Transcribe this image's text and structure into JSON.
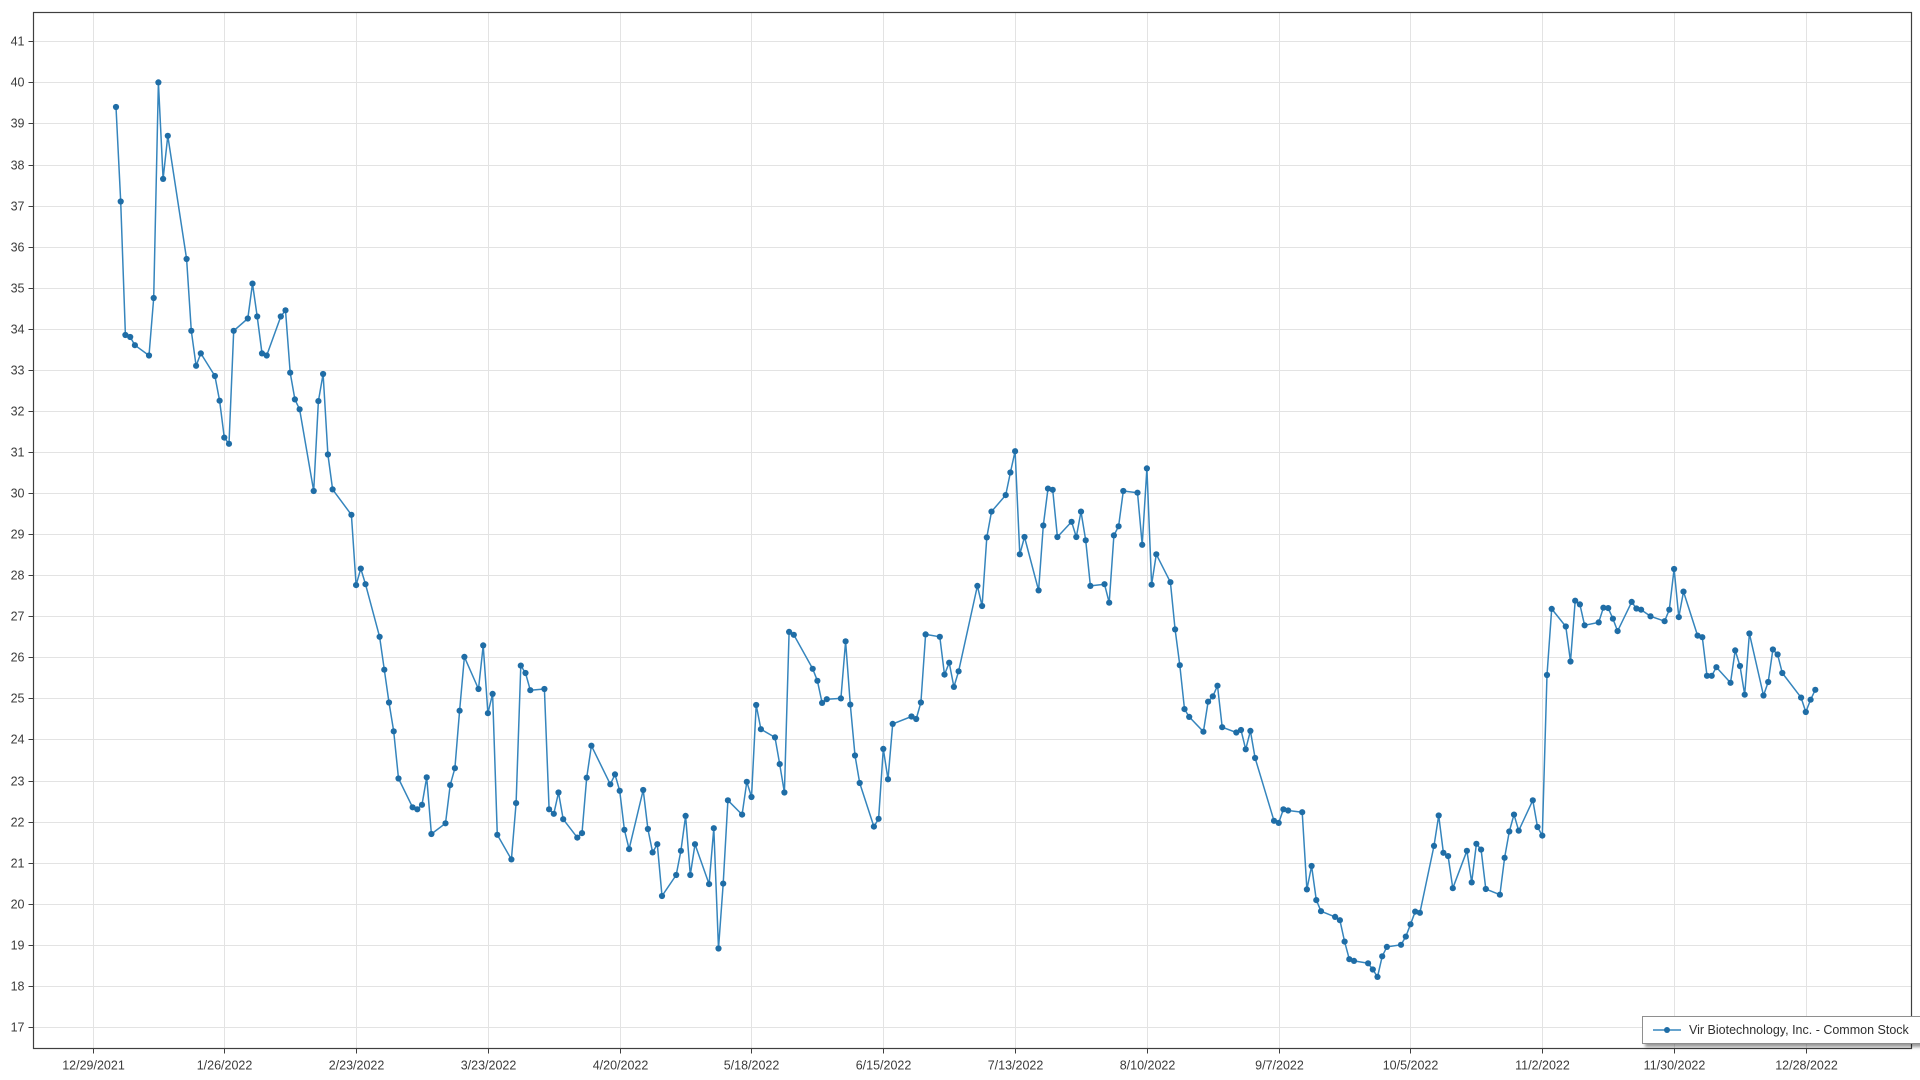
{
  "page": {
    "background": "#ffffff"
  },
  "legend": {
    "label": "Vir Biotechnology, Inc. - Common Stock"
  },
  "colors": {
    "line": "#3585bd",
    "marker": "#1f6da6",
    "grid": "#e3e3e3",
    "plot_border": "#3f3f3f",
    "tick": "#3f3f3f",
    "tick_label": "#3c3c3c",
    "legend_border": "#8f8f8f",
    "legend_bg": "#ffffff",
    "legend_text": "#2f2f2f",
    "background": "#ffffff"
  },
  "chart_data": {
    "type": "line",
    "title": "",
    "xlabel": "",
    "ylabel": "",
    "grid": true,
    "legend_position": "bottom-right",
    "ylim": [
      16.5,
      41.7
    ],
    "y_ticks": [
      17,
      18,
      19,
      20,
      21,
      22,
      23,
      24,
      25,
      26,
      27,
      28,
      29,
      30,
      31,
      32,
      33,
      34,
      35,
      36,
      37,
      38,
      39,
      40,
      41
    ],
    "x_tick_labels": [
      "12/29/2021",
      "1/26/2022",
      "2/23/2022",
      "3/23/2022",
      "4/20/2022",
      "5/18/2022",
      "6/15/2022",
      "7/13/2022",
      "8/10/2022",
      "9/7/2022",
      "10/5/2022",
      "11/2/2022",
      "11/30/2022",
      "12/28/2022"
    ],
    "series": [
      {
        "name": "Vir Biotechnology, Inc. - Common Stock",
        "points": [
          [
            "1/3/2022",
            39.4
          ],
          [
            "1/4/2022",
            37.1
          ],
          [
            "1/5/2022",
            33.85
          ],
          [
            "1/6/2022",
            33.8
          ],
          [
            "1/7/2022",
            33.6
          ],
          [
            "1/10/2022",
            33.35
          ],
          [
            "1/11/2022",
            34.75
          ],
          [
            "1/12/2022",
            40.0
          ],
          [
            "1/13/2022",
            37.65
          ],
          [
            "1/14/2022",
            38.7
          ],
          [
            "1/18/2022",
            35.7
          ],
          [
            "1/19/2022",
            33.95
          ],
          [
            "1/20/2022",
            33.1
          ],
          [
            "1/21/2022",
            33.4
          ],
          [
            "1/24/2022",
            32.85
          ],
          [
            "1/25/2022",
            32.25
          ],
          [
            "1/26/2022",
            31.35
          ],
          [
            "1/27/2022",
            31.2
          ],
          [
            "1/28/2022",
            33.95
          ],
          [
            "1/31/2022",
            34.25
          ],
          [
            "2/1/2022",
            35.1
          ],
          [
            "2/2/2022",
            34.3
          ],
          [
            "2/3/2022",
            33.4
          ],
          [
            "2/4/2022",
            33.35
          ],
          [
            "2/7/2022",
            34.3
          ],
          [
            "2/8/2022",
            34.45
          ],
          [
            "2/9/2022",
            32.93
          ],
          [
            "2/10/2022",
            32.28
          ],
          [
            "2/11/2022",
            32.04
          ],
          [
            "2/14/2022",
            30.05
          ],
          [
            "2/15/2022",
            32.24
          ],
          [
            "2/16/2022",
            32.9
          ],
          [
            "2/17/2022",
            30.94
          ],
          [
            "2/18/2022",
            30.09
          ],
          [
            "2/22/2022",
            29.47
          ],
          [
            "2/23/2022",
            27.76
          ],
          [
            "2/24/2022",
            28.16
          ],
          [
            "2/25/2022",
            27.78
          ],
          [
            "2/28/2022",
            26.5
          ],
          [
            "3/1/2022",
            25.7
          ],
          [
            "3/2/2022",
            24.9
          ],
          [
            "3/3/2022",
            24.2
          ],
          [
            "3/4/2022",
            23.05
          ],
          [
            "3/7/2022",
            22.35
          ],
          [
            "3/8/2022",
            22.3
          ],
          [
            "3/9/2022",
            22.41
          ],
          [
            "3/10/2022",
            23.08
          ],
          [
            "3/11/2022",
            21.7
          ],
          [
            "3/14/2022",
            21.96
          ],
          [
            "3/15/2022",
            22.89
          ],
          [
            "3/16/2022",
            23.3
          ],
          [
            "3/17/2022",
            24.7
          ],
          [
            "3/18/2022",
            26.01
          ],
          [
            "3/21/2022",
            25.23
          ],
          [
            "3/22/2022",
            26.29
          ],
          [
            "3/23/2022",
            24.64
          ],
          [
            "3/24/2022",
            25.11
          ],
          [
            "3/25/2022",
            21.68
          ],
          [
            "3/28/2022",
            21.08
          ],
          [
            "3/29/2022",
            22.45
          ],
          [
            "3/30/2022",
            25.8
          ],
          [
            "3/31/2022",
            25.62
          ],
          [
            "4/1/2022",
            25.2
          ],
          [
            "4/4/2022",
            25.23
          ],
          [
            "4/5/2022",
            22.3
          ],
          [
            "4/6/2022",
            22.19
          ],
          [
            "4/7/2022",
            22.71
          ],
          [
            "4/8/2022",
            22.06
          ],
          [
            "4/11/2022",
            21.61
          ],
          [
            "4/12/2022",
            21.72
          ],
          [
            "4/13/2022",
            23.07
          ],
          [
            "4/14/2022",
            23.85
          ],
          [
            "4/18/2022",
            22.91
          ],
          [
            "4/19/2022",
            23.15
          ],
          [
            "4/20/2022",
            22.75
          ],
          [
            "4/21/2022",
            21.8
          ],
          [
            "4/22/2022",
            21.33
          ],
          [
            "4/25/2022",
            22.77
          ],
          [
            "4/26/2022",
            21.82
          ],
          [
            "4/27/2022",
            21.25
          ],
          [
            "4/28/2022",
            21.45
          ],
          [
            "4/29/2022",
            20.19
          ],
          [
            "5/2/2022",
            20.7
          ],
          [
            "5/3/2022",
            21.29
          ],
          [
            "5/4/2022",
            22.14
          ],
          [
            "5/5/2022",
            20.7
          ],
          [
            "5/6/2022",
            21.45
          ],
          [
            "5/9/2022",
            20.48
          ],
          [
            "5/10/2022",
            21.84
          ],
          [
            "5/11/2022",
            18.91
          ],
          [
            "5/12/2022",
            20.49
          ],
          [
            "5/13/2022",
            22.52
          ],
          [
            "5/16/2022",
            22.17
          ],
          [
            "5/17/2022",
            22.97
          ],
          [
            "5/18/2022",
            22.6
          ],
          [
            "5/19/2022",
            24.84
          ],
          [
            "5/20/2022",
            24.25
          ],
          [
            "5/23/2022",
            24.05
          ],
          [
            "5/24/2022",
            23.4
          ],
          [
            "5/25/2022",
            22.71
          ],
          [
            "5/26/2022",
            26.62
          ],
          [
            "5/27/2022",
            26.55
          ],
          [
            "5/31/2022",
            25.72
          ],
          [
            "6/1/2022",
            25.43
          ],
          [
            "6/2/2022",
            24.89
          ],
          [
            "6/3/2022",
            24.98
          ],
          [
            "6/6/2022",
            25.0
          ],
          [
            "6/7/2022",
            26.39
          ],
          [
            "6/8/2022",
            24.85
          ],
          [
            "6/9/2022",
            23.61
          ],
          [
            "6/10/2022",
            22.94
          ],
          [
            "6/13/2022",
            21.88
          ],
          [
            "6/14/2022",
            22.07
          ],
          [
            "6/15/2022",
            23.77
          ],
          [
            "6/16/2022",
            23.03
          ],
          [
            "6/17/2022",
            24.38
          ],
          [
            "6/21/2022",
            24.56
          ],
          [
            "6/22/2022",
            24.5
          ],
          [
            "6/23/2022",
            24.9
          ],
          [
            "6/24/2022",
            26.56
          ],
          [
            "6/27/2022",
            26.5
          ],
          [
            "6/28/2022",
            25.58
          ],
          [
            "6/29/2022",
            25.87
          ],
          [
            "6/30/2022",
            25.28
          ],
          [
            "7/1/2022",
            25.66
          ],
          [
            "7/5/2022",
            27.74
          ],
          [
            "7/6/2022",
            27.25
          ],
          [
            "7/7/2022",
            28.92
          ],
          [
            "7/8/2022",
            29.55
          ],
          [
            "7/11/2022",
            29.95
          ],
          [
            "7/12/2022",
            30.5
          ],
          [
            "7/13/2022",
            31.02
          ],
          [
            "7/14/2022",
            28.51
          ],
          [
            "7/15/2022",
            28.93
          ],
          [
            "7/18/2022",
            27.63
          ],
          [
            "7/19/2022",
            29.21
          ],
          [
            "7/20/2022",
            30.11
          ],
          [
            "7/21/2022",
            30.08
          ],
          [
            "7/22/2022",
            28.93
          ],
          [
            "7/25/2022",
            29.3
          ],
          [
            "7/26/2022",
            28.93
          ],
          [
            "7/27/2022",
            29.55
          ],
          [
            "7/28/2022",
            28.85
          ],
          [
            "7/29/2022",
            27.74
          ],
          [
            "8/1/2022",
            27.78
          ],
          [
            "8/2/2022",
            27.33
          ],
          [
            "8/3/2022",
            28.97
          ],
          [
            "8/4/2022",
            29.19
          ],
          [
            "8/5/2022",
            30.05
          ],
          [
            "8/8/2022",
            30.01
          ],
          [
            "8/9/2022",
            28.74
          ],
          [
            "8/10/2022",
            30.6
          ],
          [
            "8/11/2022",
            27.77
          ],
          [
            "8/12/2022",
            28.51
          ],
          [
            "8/15/2022",
            27.83
          ],
          [
            "8/16/2022",
            26.68
          ],
          [
            "8/17/2022",
            25.81
          ],
          [
            "8/18/2022",
            24.74
          ],
          [
            "8/19/2022",
            24.55
          ],
          [
            "8/22/2022",
            24.19
          ],
          [
            "8/23/2022",
            24.92
          ],
          [
            "8/24/2022",
            25.05
          ],
          [
            "8/25/2022",
            25.31
          ],
          [
            "8/26/2022",
            24.3
          ],
          [
            "8/29/2022",
            24.17
          ],
          [
            "8/30/2022",
            24.23
          ],
          [
            "8/31/2022",
            23.76
          ],
          [
            "9/1/2022",
            24.21
          ],
          [
            "9/2/2022",
            23.55
          ],
          [
            "9/6/2022",
            22.02
          ],
          [
            "9/7/2022",
            21.97
          ],
          [
            "9/8/2022",
            22.3
          ],
          [
            "9/9/2022",
            22.27
          ],
          [
            "9/12/2022",
            22.23
          ],
          [
            "9/13/2022",
            20.35
          ],
          [
            "9/14/2022",
            20.92
          ],
          [
            "9/15/2022",
            20.09
          ],
          [
            "9/16/2022",
            19.82
          ],
          [
            "9/19/2022",
            19.68
          ],
          [
            "9/20/2022",
            19.6
          ],
          [
            "9/21/2022",
            19.08
          ],
          [
            "9/22/2022",
            18.65
          ],
          [
            "9/23/2022",
            18.61
          ],
          [
            "9/26/2022",
            18.55
          ],
          [
            "9/27/2022",
            18.4
          ],
          [
            "9/28/2022",
            18.22
          ],
          [
            "9/29/2022",
            18.72
          ],
          [
            "9/30/2022",
            18.95
          ],
          [
            "10/3/2022",
            19.0
          ],
          [
            "10/4/2022",
            19.2
          ],
          [
            "10/5/2022",
            19.5
          ],
          [
            "10/6/2022",
            19.81
          ],
          [
            "10/7/2022",
            19.78
          ],
          [
            "10/10/2022",
            21.41
          ],
          [
            "10/11/2022",
            22.15
          ],
          [
            "10/12/2022",
            21.24
          ],
          [
            "10/13/2022",
            21.16
          ],
          [
            "10/14/2022",
            20.38
          ],
          [
            "10/17/2022",
            21.29
          ],
          [
            "10/18/2022",
            20.52
          ],
          [
            "10/19/2022",
            21.46
          ],
          [
            "10/20/2022",
            21.32
          ],
          [
            "10/21/2022",
            20.36
          ],
          [
            "10/24/2022",
            20.22
          ],
          [
            "10/25/2022",
            21.12
          ],
          [
            "10/26/2022",
            21.76
          ],
          [
            "10/27/2022",
            22.17
          ],
          [
            "10/28/2022",
            21.78
          ],
          [
            "10/31/2022",
            22.52
          ],
          [
            "11/1/2022",
            21.87
          ],
          [
            "11/2/2022",
            21.66
          ],
          [
            "11/3/2022",
            25.57
          ],
          [
            "11/4/2022",
            27.18
          ],
          [
            "11/7/2022",
            26.75
          ],
          [
            "11/8/2022",
            25.9
          ],
          [
            "11/9/2022",
            27.38
          ],
          [
            "11/10/2022",
            27.29
          ],
          [
            "11/11/2022",
            26.78
          ],
          [
            "11/14/2022",
            26.85
          ],
          [
            "11/15/2022",
            27.21
          ],
          [
            "11/16/2022",
            27.2
          ],
          [
            "11/17/2022",
            26.94
          ],
          [
            "11/18/2022",
            26.64
          ],
          [
            "11/21/2022",
            27.35
          ],
          [
            "11/22/2022",
            27.19
          ],
          [
            "11/23/2022",
            27.16
          ],
          [
            "11/25/2022",
            27.0
          ],
          [
            "11/28/2022",
            26.88
          ],
          [
            "11/29/2022",
            27.16
          ],
          [
            "11/30/2022",
            28.15
          ],
          [
            "12/1/2022",
            26.98
          ],
          [
            "12/2/2022",
            27.6
          ],
          [
            "12/5/2022",
            26.53
          ],
          [
            "12/6/2022",
            26.49
          ],
          [
            "12/7/2022",
            25.55
          ],
          [
            "12/8/2022",
            25.55
          ],
          [
            "12/9/2022",
            25.76
          ],
          [
            "12/12/2022",
            25.38
          ],
          [
            "12/13/2022",
            26.17
          ],
          [
            "12/14/2022",
            25.79
          ],
          [
            "12/15/2022",
            25.09
          ],
          [
            "12/16/2022",
            26.58
          ],
          [
            "12/19/2022",
            25.07
          ],
          [
            "12/20/2022",
            25.4
          ],
          [
            "12/21/2022",
            26.19
          ],
          [
            "12/22/2022",
            26.07
          ],
          [
            "12/23/2022",
            25.62
          ],
          [
            "12/27/2022",
            25.02
          ],
          [
            "12/28/2022",
            24.67
          ],
          [
            "12/29/2022",
            24.97
          ],
          [
            "12/30/2022",
            25.21
          ]
        ]
      }
    ]
  }
}
